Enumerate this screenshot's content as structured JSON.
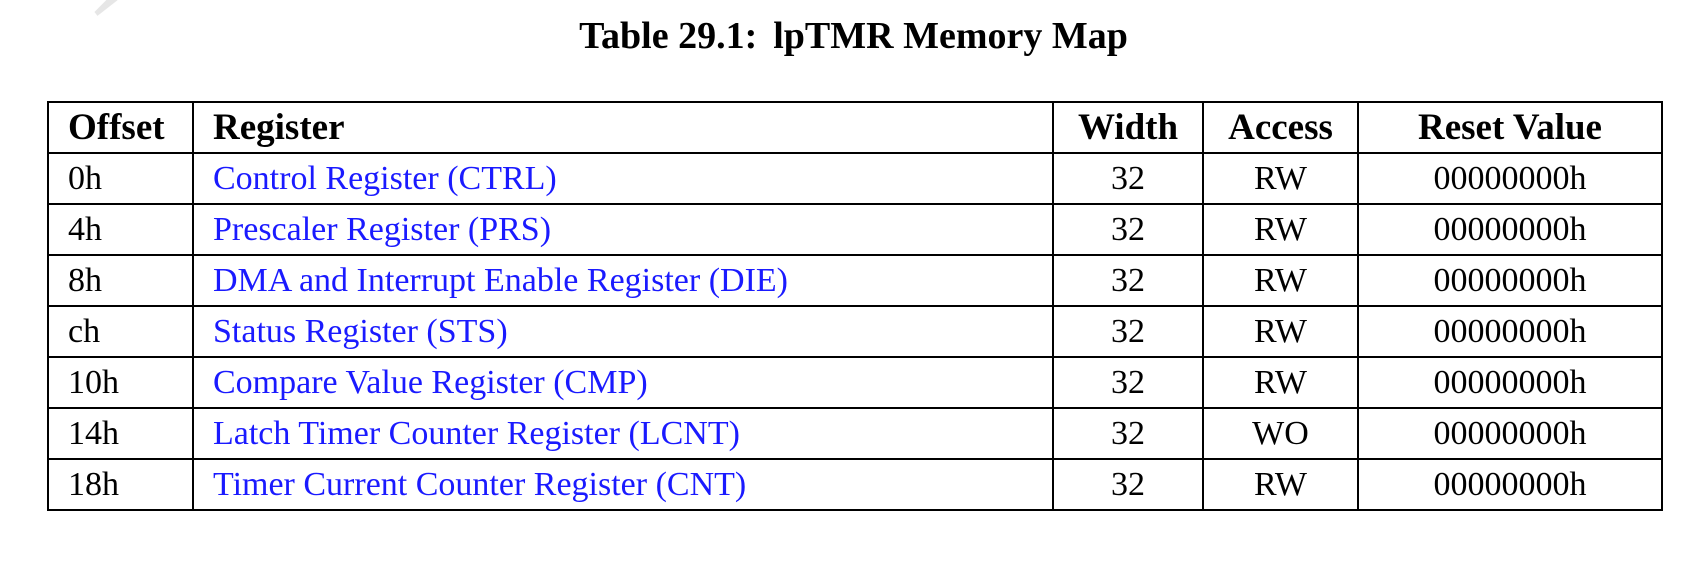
{
  "document": {
    "caption_label": "Table 29.1:",
    "caption_title": "lpTMR Memory Map",
    "watermark_text": "Yu"
  },
  "colors": {
    "link": "#1a1aff",
    "border": "#000000",
    "watermark": "#e6e6e6"
  },
  "table": {
    "headers": {
      "offset": "Offset",
      "register": "Register",
      "width": "Width",
      "access": "Access",
      "reset": "Reset Value"
    },
    "rows": [
      {
        "offset": "0h",
        "register": "Control Register (CTRL)",
        "width": "32",
        "access": "RW",
        "reset": "00000000h"
      },
      {
        "offset": "4h",
        "register": "Prescaler Register (PRS)",
        "width": "32",
        "access": "RW",
        "reset": "00000000h"
      },
      {
        "offset": "8h",
        "register": "DMA and Interrupt Enable Register (DIE)",
        "width": "32",
        "access": "RW",
        "reset": "00000000h"
      },
      {
        "offset": "ch",
        "register": "Status Register (STS)",
        "width": "32",
        "access": "RW",
        "reset": "00000000h"
      },
      {
        "offset": "10h",
        "register": "Compare Value Register (CMP)",
        "width": "32",
        "access": "RW",
        "reset": "00000000h"
      },
      {
        "offset": "14h",
        "register": "Latch Timer Counter Register (LCNT)",
        "width": "32",
        "access": "WO",
        "reset": "00000000h"
      },
      {
        "offset": "18h",
        "register": "Timer Current Counter Register (CNT)",
        "width": "32",
        "access": "RW",
        "reset": "00000000h"
      }
    ]
  }
}
